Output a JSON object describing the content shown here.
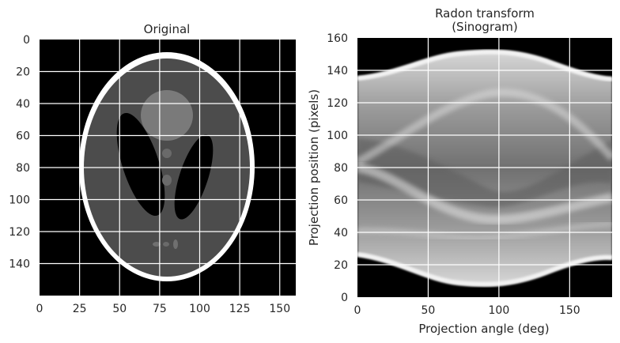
{
  "chart_data": [
    {
      "type": "heatmap",
      "title": "Original",
      "subtitle": "",
      "xlabel": "",
      "ylabel": "",
      "xlim": [
        0,
        160
      ],
      "ylim": [
        160,
        0
      ],
      "y_inverted": true,
      "xticks": [
        0,
        25,
        50,
        75,
        100,
        125,
        150
      ],
      "yticks": [
        0,
        20,
        40,
        60,
        80,
        100,
        120,
        140
      ],
      "grid": true,
      "colormap": "gray",
      "image": "Shepp-Logan phantom"
    },
    {
      "type": "heatmap",
      "title": "Radon transform",
      "subtitle": "(Sinogram)",
      "xlabel": "Projection angle (deg)",
      "ylabel": "Projection position (pixels)",
      "xlim": [
        0,
        180
      ],
      "ylim": [
        0,
        160
      ],
      "xticks": [
        0,
        50,
        100,
        150
      ],
      "yticks": [
        0,
        20,
        40,
        60,
        80,
        100,
        120,
        140,
        160
      ],
      "grid": true,
      "colormap": "gray"
    }
  ],
  "colors": {
    "background": "#000000",
    "grid": "#ffffff",
    "text": "#262626"
  }
}
